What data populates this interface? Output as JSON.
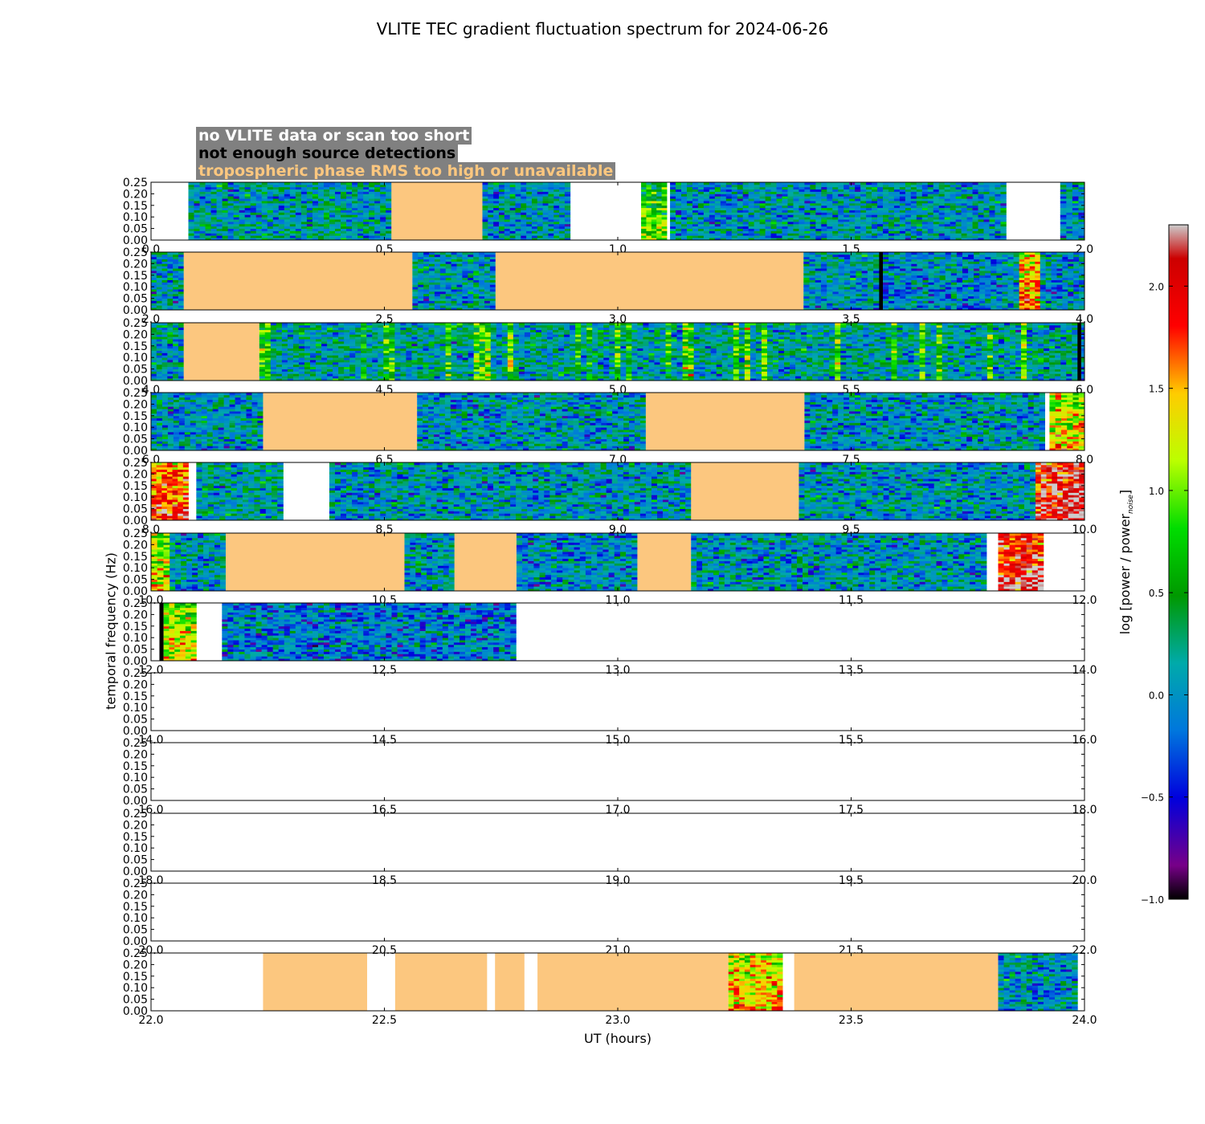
{
  "chart_data": {
    "type": "heatmap",
    "title": "VLITE TEC gradient fluctuation spectrum for 2024-06-26",
    "xlabel": "UT (hours)",
    "ylabel": "temporal frequency (Hz)",
    "colorbar_label": "log [power / power",
    "colorbar_label_sub": "noise",
    "colorbar_label_close": "]",
    "colorbar_range": [
      -1.0,
      2.3
    ],
    "colorbar_ticks": [
      "2.0",
      "1.5",
      "1.0",
      "0.5",
      "0.0",
      "−0.5",
      "−1.0"
    ],
    "colorbar_tick_values": [
      2.0,
      1.5,
      1.0,
      0.5,
      0.0,
      -0.5,
      -1.0
    ],
    "colormap": "nipy_spectral",
    "ylim": [
      0.0,
      0.25
    ],
    "y_ticks": [
      "0.00",
      "0.05",
      "0.10",
      "0.15",
      "0.20",
      "0.25"
    ],
    "legend": [
      {
        "label": "no VLITE data or scan too short",
        "color": "#ffffff"
      },
      {
        "label": "not enough source detections",
        "color": "#000000"
      },
      {
        "label": "tropospheric phase RMS too high or unavailable",
        "color": "#fcc77f"
      }
    ],
    "panels": [
      {
        "xlim": [
          0.0,
          2.0
        ],
        "x_ticks": [
          "0.0",
          "0.5",
          "1.0",
          "1.5",
          "2.0"
        ],
        "segments": [
          {
            "start": 0.0,
            "end": 0.08,
            "type": "nodata"
          },
          {
            "start": 0.08,
            "end": 0.515,
            "type": "data",
            "level": 0.1
          },
          {
            "start": 0.515,
            "end": 0.71,
            "type": "tropo"
          },
          {
            "start": 0.71,
            "end": 0.898,
            "type": "data",
            "level": 0.05
          },
          {
            "start": 0.898,
            "end": 1.05,
            "type": "nodata"
          },
          {
            "start": 1.05,
            "end": 1.105,
            "type": "data",
            "level": 0.45,
            "hot": true
          },
          {
            "start": 1.105,
            "end": 1.112,
            "type": "nodata"
          },
          {
            "start": 1.112,
            "end": 1.832,
            "type": "data",
            "level": 0.05
          },
          {
            "start": 1.832,
            "end": 1.948,
            "type": "nodata"
          },
          {
            "start": 1.948,
            "end": 2.0,
            "type": "data",
            "level": 0.05
          }
        ]
      },
      {
        "xlim": [
          2.0,
          4.0
        ],
        "x_ticks": [
          "2.0",
          "2.5",
          "3.0",
          "3.5",
          "4.0"
        ],
        "segments": [
          {
            "start": 2.0,
            "end": 2.07,
            "type": "data",
            "level": 0.05
          },
          {
            "start": 2.07,
            "end": 2.56,
            "type": "tropo"
          },
          {
            "start": 2.56,
            "end": 2.738,
            "type": "data",
            "level": 0.05
          },
          {
            "start": 2.738,
            "end": 3.398,
            "type": "tropo"
          },
          {
            "start": 3.398,
            "end": 3.56,
            "type": "data",
            "level": 0.05
          },
          {
            "start": 3.56,
            "end": 3.568,
            "type": "nodet"
          },
          {
            "start": 3.568,
            "end": 3.86,
            "type": "data",
            "level": 0.0
          },
          {
            "start": 3.86,
            "end": 3.905,
            "type": "data",
            "level": 1.1,
            "hot": true
          },
          {
            "start": 3.905,
            "end": 4.0,
            "type": "data",
            "level": 0.0
          }
        ]
      },
      {
        "xlim": [
          4.0,
          6.0
        ],
        "x_ticks": [
          "4.0",
          "4.5",
          "5.0",
          "5.5",
          "6.0"
        ],
        "segments": [
          {
            "start": 4.0,
            "end": 4.07,
            "type": "data",
            "level": 0.1
          },
          {
            "start": 4.07,
            "end": 4.232,
            "type": "tropo"
          },
          {
            "start": 4.232,
            "end": 5.985,
            "type": "data",
            "level": 0.15,
            "striped": true
          },
          {
            "start": 5.985,
            "end": 5.993,
            "type": "nodet"
          },
          {
            "start": 5.993,
            "end": 6.0,
            "type": "data",
            "level": 0.05
          }
        ]
      },
      {
        "xlim": [
          6.0,
          8.0
        ],
        "x_ticks": [
          "6.0",
          "6.5",
          "7.0",
          "7.5",
          "8.0"
        ],
        "segments": [
          {
            "start": 6.0,
            "end": 6.24,
            "type": "data",
            "level": 0.05
          },
          {
            "start": 6.24,
            "end": 6.57,
            "type": "tropo"
          },
          {
            "start": 6.57,
            "end": 7.06,
            "type": "data",
            "level": 0.05
          },
          {
            "start": 7.06,
            "end": 7.4,
            "type": "tropo"
          },
          {
            "start": 7.4,
            "end": 7.915,
            "type": "data",
            "level": 0.05
          },
          {
            "start": 7.915,
            "end": 7.925,
            "type": "nodata"
          },
          {
            "start": 7.925,
            "end": 8.0,
            "type": "data",
            "level": 0.9,
            "hot": true
          }
        ]
      },
      {
        "xlim": [
          8.0,
          10.0
        ],
        "x_ticks": [
          "8.0",
          "8.5",
          "9.0",
          "9.5",
          "10.0"
        ],
        "segments": [
          {
            "start": 8.0,
            "end": 8.08,
            "type": "data",
            "level": 1.4,
            "hot": true
          },
          {
            "start": 8.08,
            "end": 8.097,
            "type": "nodata"
          },
          {
            "start": 8.097,
            "end": 8.283,
            "type": "data",
            "level": 0.15
          },
          {
            "start": 8.283,
            "end": 8.382,
            "type": "nodata"
          },
          {
            "start": 8.382,
            "end": 9.157,
            "type": "data",
            "level": 0.05
          },
          {
            "start": 9.157,
            "end": 9.388,
            "type": "tropo"
          },
          {
            "start": 9.388,
            "end": 9.895,
            "type": "data",
            "level": 0.05
          },
          {
            "start": 9.895,
            "end": 10.0,
            "type": "data",
            "level": 1.7,
            "hot": true
          }
        ]
      },
      {
        "xlim": [
          10.0,
          12.0
        ],
        "x_ticks": [
          "10.0",
          "10.5",
          "11.0",
          "11.5",
          "12.0"
        ],
        "segments": [
          {
            "start": 10.0,
            "end": 10.04,
            "type": "data",
            "level": 0.8,
            "hot": true
          },
          {
            "start": 10.04,
            "end": 10.16,
            "type": "data",
            "level": 0.05
          },
          {
            "start": 10.16,
            "end": 10.543,
            "type": "tropo"
          },
          {
            "start": 10.543,
            "end": 10.65,
            "type": "data",
            "level": 0.05
          },
          {
            "start": 10.65,
            "end": 10.783,
            "type": "tropo"
          },
          {
            "start": 10.783,
            "end": 11.042,
            "type": "data",
            "level": 0.0
          },
          {
            "start": 11.042,
            "end": 11.157,
            "type": "tropo"
          },
          {
            "start": 11.157,
            "end": 11.79,
            "type": "data",
            "level": 0.05
          },
          {
            "start": 11.79,
            "end": 11.815,
            "type": "nodata"
          },
          {
            "start": 11.815,
            "end": 11.912,
            "type": "data",
            "level": 1.6,
            "hot": true
          },
          {
            "start": 11.912,
            "end": 12.0,
            "type": "nodata"
          }
        ]
      },
      {
        "xlim": [
          12.0,
          14.0
        ],
        "x_ticks": [
          "12.0",
          "12.5",
          "13.0",
          "13.5",
          "14.0"
        ],
        "segments": [
          {
            "start": 12.0,
            "end": 12.018,
            "type": "nodata"
          },
          {
            "start": 12.018,
            "end": 12.027,
            "type": "nodet"
          },
          {
            "start": 12.027,
            "end": 12.097,
            "type": "data",
            "level": 0.8,
            "hot": true
          },
          {
            "start": 12.097,
            "end": 12.152,
            "type": "nodata"
          },
          {
            "start": 12.152,
            "end": 12.782,
            "type": "data",
            "level": -0.1
          },
          {
            "start": 12.782,
            "end": 14.0,
            "type": "nodata"
          }
        ]
      },
      {
        "xlim": [
          14.0,
          16.0
        ],
        "x_ticks": [
          "14.0",
          "14.5",
          "15.0",
          "15.5",
          "16.0"
        ],
        "segments": [
          {
            "start": 14.0,
            "end": 16.0,
            "type": "nodata"
          }
        ]
      },
      {
        "xlim": [
          16.0,
          18.0
        ],
        "x_ticks": [
          "16.0",
          "16.5",
          "17.0",
          "17.5",
          "18.0"
        ],
        "segments": [
          {
            "start": 16.0,
            "end": 18.0,
            "type": "nodata"
          }
        ]
      },
      {
        "xlim": [
          18.0,
          20.0
        ],
        "x_ticks": [
          "18.0",
          "18.5",
          "19.0",
          "19.5",
          "20.0"
        ],
        "segments": [
          {
            "start": 18.0,
            "end": 20.0,
            "type": "nodata"
          }
        ]
      },
      {
        "xlim": [
          20.0,
          22.0
        ],
        "x_ticks": [
          "20.0",
          "20.5",
          "21.0",
          "21.5",
          "22.0"
        ],
        "segments": [
          {
            "start": 20.0,
            "end": 22.0,
            "type": "nodata"
          }
        ]
      },
      {
        "xlim": [
          22.0,
          24.0
        ],
        "x_ticks": [
          "22.0",
          "22.5",
          "23.0",
          "23.5",
          "24.0"
        ],
        "segments": [
          {
            "start": 22.0,
            "end": 22.24,
            "type": "nodata"
          },
          {
            "start": 22.24,
            "end": 22.463,
            "type": "tropo"
          },
          {
            "start": 22.463,
            "end": 22.523,
            "type": "nodata"
          },
          {
            "start": 22.523,
            "end": 22.72,
            "type": "tropo"
          },
          {
            "start": 22.72,
            "end": 22.737,
            "type": "nodata"
          },
          {
            "start": 22.737,
            "end": 22.8,
            "type": "tropo"
          },
          {
            "start": 22.8,
            "end": 22.828,
            "type": "nodata"
          },
          {
            "start": 22.828,
            "end": 23.237,
            "type": "tropo"
          },
          {
            "start": 23.237,
            "end": 23.353,
            "type": "data",
            "level": 1.0,
            "hot": true
          },
          {
            "start": 23.353,
            "end": 23.378,
            "type": "nodata"
          },
          {
            "start": 23.378,
            "end": 23.815,
            "type": "tropo"
          },
          {
            "start": 23.815,
            "end": 23.985,
            "type": "data",
            "level": 0.05
          },
          {
            "start": 23.985,
            "end": 24.0,
            "type": "nodata"
          }
        ]
      }
    ]
  }
}
